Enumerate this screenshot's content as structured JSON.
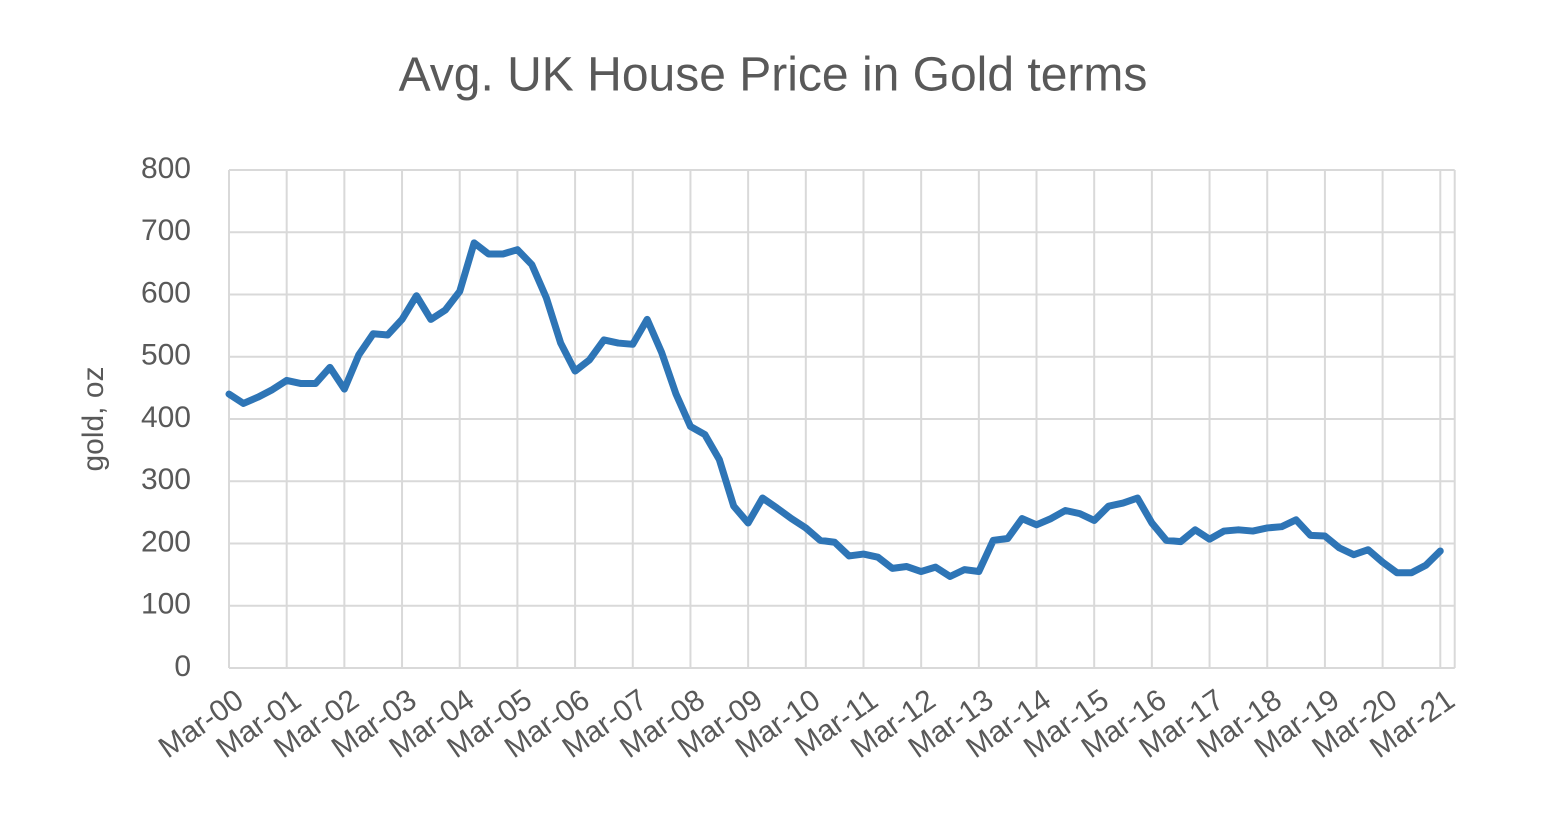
{
  "chart_data": {
    "type": "line",
    "title": "Avg. UK House Price in Gold terms",
    "y_label": "gold, oz",
    "categories": [
      "Mar-00",
      null,
      null,
      null,
      "Mar-01",
      null,
      null,
      null,
      "Mar-02",
      null,
      null,
      null,
      "Mar-03",
      null,
      null,
      null,
      "Mar-04",
      null,
      null,
      null,
      "Mar-05",
      null,
      null,
      null,
      "Mar-06",
      null,
      null,
      null,
      "Mar-07",
      null,
      null,
      null,
      "Mar-08",
      null,
      null,
      null,
      "Mar-09",
      null,
      null,
      null,
      "Mar-10",
      null,
      null,
      null,
      "Mar-11",
      null,
      null,
      null,
      "Mar-12",
      null,
      null,
      null,
      "Mar-13",
      null,
      null,
      null,
      "Mar-14",
      null,
      null,
      null,
      "Mar-15",
      null,
      null,
      null,
      "Mar-16",
      null,
      null,
      null,
      "Mar-17",
      null,
      null,
      null,
      "Mar-18",
      null,
      null,
      null,
      "Mar-19",
      null,
      null,
      null,
      "Mar-20",
      null,
      null,
      null,
      "Mar-21"
    ],
    "values": [
      440,
      425,
      435,
      447,
      462,
      457,
      457,
      483,
      448,
      503,
      537,
      535,
      560,
      598,
      560,
      575,
      605,
      683,
      665,
      665,
      672,
      648,
      595,
      522,
      477,
      495,
      527,
      522,
      520,
      560,
      507,
      440,
      388,
      375,
      335,
      260,
      233,
      273,
      257,
      240,
      225,
      205,
      202,
      180,
      183,
      178,
      160,
      163,
      155,
      162,
      147,
      158,
      155,
      205,
      208,
      240,
      230,
      240,
      253,
      248,
      237,
      260,
      265,
      273,
      233,
      205,
      203,
      222,
      207,
      220,
      222,
      220,
      225,
      227,
      238,
      213,
      212,
      193,
      182,
      190,
      170,
      153,
      153,
      165,
      188
    ],
    "color": "#2e75b6",
    "ylim": [
      0,
      800
    ],
    "yticks": [
      0,
      100,
      200,
      300,
      400,
      500,
      600,
      700,
      800
    ],
    "grid": true
  }
}
